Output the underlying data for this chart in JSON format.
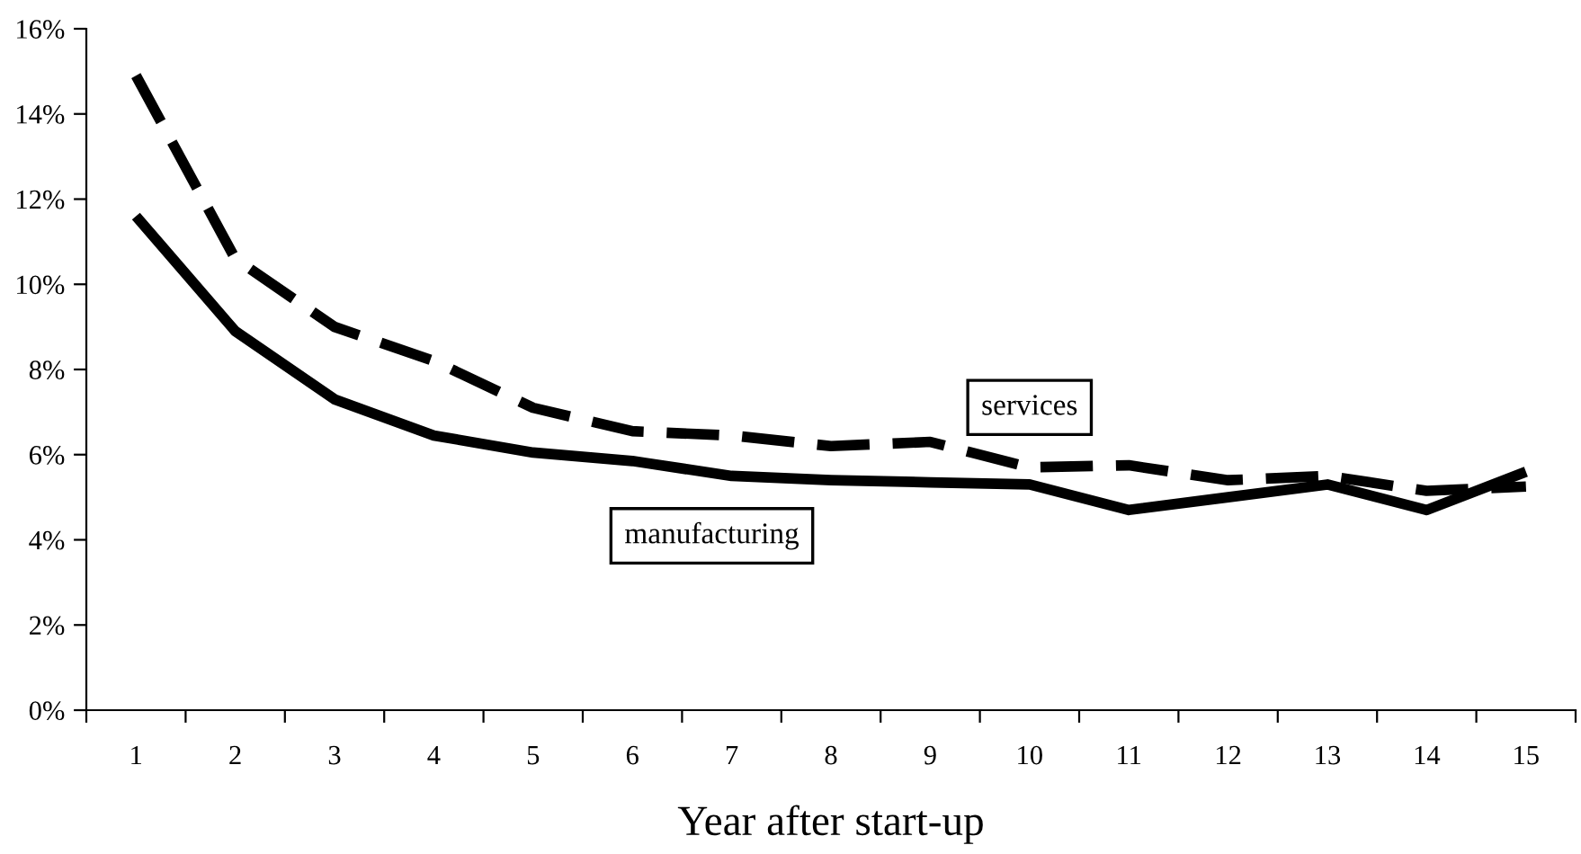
{
  "chart_data": {
    "type": "line",
    "xlabel": "Year after start-up",
    "categories": [
      "1",
      "2",
      "3",
      "4",
      "5",
      "6",
      "7",
      "8",
      "9",
      "10",
      "11",
      "12",
      "13",
      "14",
      "15"
    ],
    "series": [
      {
        "name": "manufacturing",
        "color": "#000000",
        "line_style": "solid",
        "values": [
          11.6,
          8.9,
          7.3,
          6.45,
          6.05,
          5.85,
          5.5,
          5.4,
          5.35,
          5.3,
          4.7,
          5.0,
          5.3,
          4.7,
          5.6
        ]
      },
      {
        "name": "services",
        "color": "#000000",
        "line_style": "dashed",
        "values": [
          14.9,
          10.6,
          9.0,
          8.2,
          7.1,
          6.55,
          6.45,
          6.2,
          6.3,
          5.7,
          5.75,
          5.4,
          5.5,
          5.15,
          5.25
        ]
      }
    ],
    "ylim": [
      0,
      16
    ],
    "yticks": [
      {
        "value": 0,
        "label": "0%"
      },
      {
        "value": 2,
        "label": "2%"
      },
      {
        "value": 4,
        "label": "4%"
      },
      {
        "value": 6,
        "label": "6%"
      },
      {
        "value": 8,
        "label": "8%"
      },
      {
        "value": 10,
        "label": "10%"
      },
      {
        "value": 12,
        "label": "12%"
      },
      {
        "value": 14,
        "label": "14%"
      },
      {
        "value": 16,
        "label": "16%"
      }
    ],
    "grid": false,
    "legend": false,
    "marker": "none"
  }
}
